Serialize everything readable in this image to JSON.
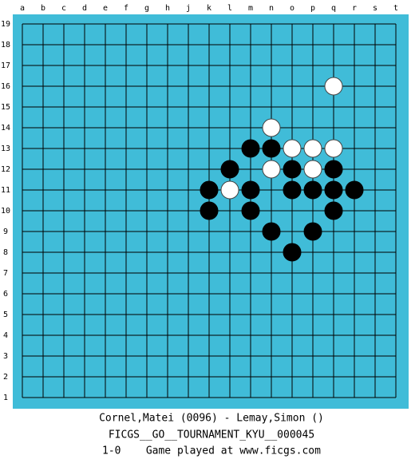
{
  "board": {
    "columns": [
      "a",
      "b",
      "c",
      "d",
      "e",
      "f",
      "g",
      "h",
      "j",
      "k",
      "l",
      "m",
      "n",
      "o",
      "p",
      "q",
      "r",
      "s",
      "t"
    ],
    "rows": [
      19,
      18,
      17,
      16,
      15,
      14,
      13,
      12,
      11,
      10,
      9,
      8,
      7,
      6,
      5,
      4,
      3,
      2,
      1
    ],
    "stones": [
      {
        "color": "white",
        "col": "q",
        "row": 16
      },
      {
        "color": "white",
        "col": "n",
        "row": 14
      },
      {
        "color": "black",
        "col": "m",
        "row": 13
      },
      {
        "color": "black",
        "col": "n",
        "row": 13
      },
      {
        "color": "white",
        "col": "o",
        "row": 13
      },
      {
        "color": "white",
        "col": "p",
        "row": 13
      },
      {
        "color": "white",
        "col": "q",
        "row": 13
      },
      {
        "color": "black",
        "col": "l",
        "row": 12
      },
      {
        "color": "white",
        "col": "n",
        "row": 12
      },
      {
        "color": "black",
        "col": "o",
        "row": 12
      },
      {
        "color": "white",
        "col": "p",
        "row": 12
      },
      {
        "color": "black",
        "col": "q",
        "row": 12
      },
      {
        "color": "black",
        "col": "k",
        "row": 11
      },
      {
        "color": "white",
        "col": "l",
        "row": 11
      },
      {
        "color": "black",
        "col": "m",
        "row": 11
      },
      {
        "color": "black",
        "col": "o",
        "row": 11
      },
      {
        "color": "black",
        "col": "p",
        "row": 11
      },
      {
        "color": "black",
        "col": "q",
        "row": 11
      },
      {
        "color": "black",
        "col": "r",
        "row": 11
      },
      {
        "color": "black",
        "col": "k",
        "row": 10
      },
      {
        "color": "black",
        "col": "m",
        "row": 10
      },
      {
        "color": "black",
        "col": "q",
        "row": 10
      },
      {
        "color": "black",
        "col": "n",
        "row": 9
      },
      {
        "color": "black",
        "col": "p",
        "row": 9
      },
      {
        "color": "black",
        "col": "o",
        "row": 8
      }
    ]
  },
  "footer": {
    "players": "Cornel,Matei (0096) - Lemay,Simon ()",
    "event": "FICGS__GO__TOURNAMENT_KYU__000045",
    "result": "1-0    Game played at www.ficgs.com"
  }
}
